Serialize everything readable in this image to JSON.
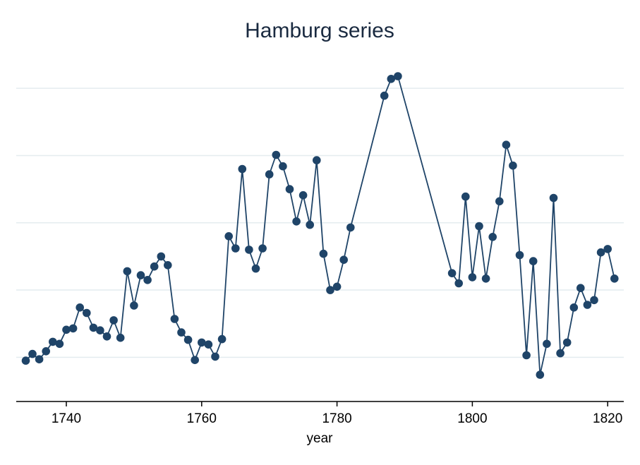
{
  "chart_data": {
    "type": "line",
    "title": "Hamburg series",
    "xlabel": "year",
    "ylabel": "",
    "xlim": [
      1733,
      1822
    ],
    "ylim": [
      0,
      5
    ],
    "xticks": [
      1740,
      1760,
      1780,
      1800,
      1820
    ],
    "gridlines_y": [
      0.5,
      1.5,
      2.5,
      3.5,
      4.5
    ],
    "grid": true,
    "colors": {
      "series": "#1f4468",
      "grid": "#e4ecef",
      "axis": "#000000"
    },
    "series": [
      {
        "x": [
          1734,
          1735,
          1736,
          1737,
          1738,
          1739,
          1740,
          1741,
          1742,
          1743,
          1744,
          1745,
          1746,
          1747,
          1748,
          1749,
          1750,
          1751,
          1752,
          1753,
          1754,
          1755,
          1756,
          1757,
          1758,
          1759,
          1760,
          1761,
          1762,
          1763,
          1764,
          1765,
          1766,
          1767,
          1768,
          1769,
          1770,
          1771,
          1772,
          1773,
          1774,
          1775,
          1776,
          1777,
          1778,
          1779,
          1780,
          1781,
          1782,
          1787,
          1788,
          1789,
          1797,
          1798,
          1799,
          1800,
          1801,
          1802,
          1803,
          1804,
          1805,
          1806,
          1807,
          1808,
          1809,
          1810,
          1811,
          1812,
          1813,
          1814,
          1815,
          1816,
          1817,
          1818,
          1819,
          1820,
          1821
        ],
        "y": [
          0.45,
          0.55,
          0.47,
          0.59,
          0.73,
          0.7,
          0.91,
          0.93,
          1.24,
          1.16,
          0.94,
          0.9,
          0.81,
          1.05,
          0.79,
          1.78,
          1.27,
          1.72,
          1.65,
          1.85,
          2.0,
          1.87,
          1.07,
          0.87,
          0.76,
          0.46,
          0.72,
          0.69,
          0.51,
          0.77,
          2.3,
          2.12,
          3.3,
          2.1,
          1.82,
          2.12,
          3.22,
          3.51,
          3.34,
          3.0,
          2.52,
          2.91,
          2.47,
          3.43,
          2.04,
          1.5,
          1.55,
          1.95,
          2.43,
          4.39,
          4.64,
          4.68,
          1.75,
          1.6,
          2.89,
          1.69,
          2.45,
          1.67,
          2.29,
          2.82,
          3.66,
          3.35,
          2.02,
          0.53,
          1.93,
          0.24,
          0.7,
          2.87,
          0.56,
          0.72,
          1.24,
          1.53,
          1.28,
          1.35,
          2.06,
          2.11,
          1.67
        ]
      }
    ]
  }
}
